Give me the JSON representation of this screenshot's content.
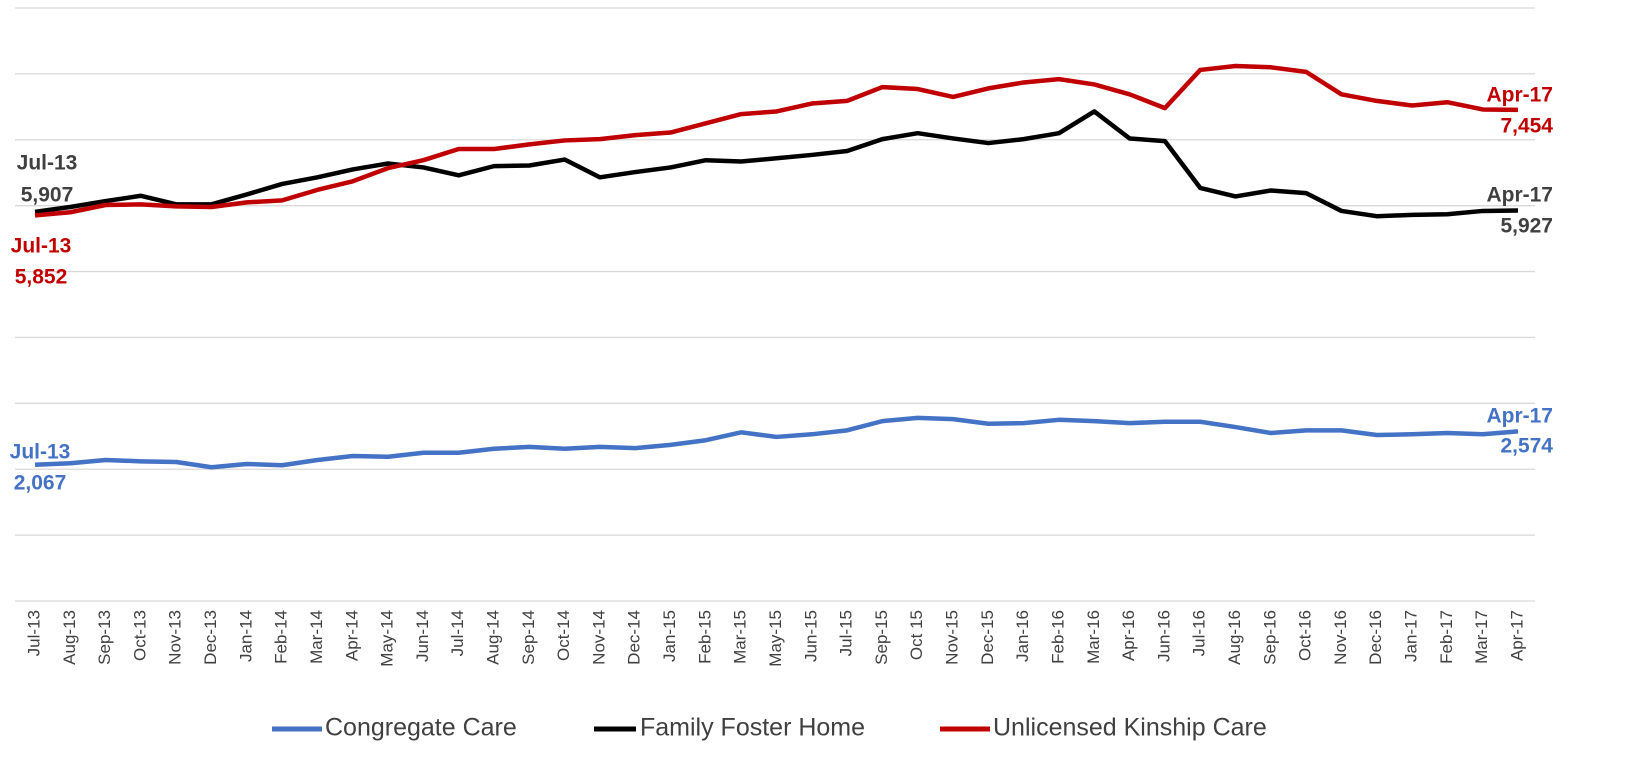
{
  "chart_data": {
    "type": "line",
    "categories": [
      "Jul-13",
      "Aug-13",
      "Sep-13",
      "Oct-13",
      "Nov-13",
      "Dec-13",
      "Jan-14",
      "Feb-14",
      "Mar-14",
      "Apr-14",
      "May-14",
      "Jun-14",
      "Jul-14",
      "Aug-14",
      "Sep-14",
      "Oct-14",
      "Nov-14",
      "Dec-14",
      "Jan-15",
      "Feb-15",
      "Mar-15",
      "May-15",
      "Jun-15",
      "Jul-15",
      "Sep-15",
      "Oct 15",
      "Nov-15",
      "Dec-15",
      "Jan-16",
      "Feb-16",
      "Mar-16",
      "Apr-16",
      "Jun-16",
      "Jul-16",
      "Aug-16",
      "Sep-16",
      "Oct-16",
      "Nov-16",
      "Dec-16",
      "Jan-17",
      "Feb-17",
      "Mar-17",
      "Apr-17"
    ],
    "series": [
      {
        "name": "Congregate Care",
        "color": "#4472c4",
        "label_color": "#4472c4",
        "values": [
          2067,
          2090,
          2140,
          2120,
          2110,
          2030,
          2080,
          2060,
          2140,
          2200,
          2190,
          2250,
          2250,
          2310,
          2340,
          2310,
          2340,
          2320,
          2370,
          2440,
          2560,
          2490,
          2530,
          2590,
          2730,
          2780,
          2760,
          2690,
          2700,
          2750,
          2730,
          2700,
          2720,
          2720,
          2640,
          2550,
          2590,
          2590,
          2520,
          2530,
          2550,
          2530,
          2574
        ],
        "value_labels": [
          "2,067",
          null,
          null,
          null,
          null,
          null,
          null,
          null,
          null,
          null,
          null,
          null,
          null,
          null,
          null,
          null,
          null,
          null,
          null,
          null,
          null,
          null,
          null,
          null,
          null,
          null,
          null,
          null,
          null,
          null,
          null,
          null,
          null,
          null,
          null,
          null,
          null,
          null,
          null,
          null,
          null,
          null,
          "2,574"
        ]
      },
      {
        "name": "Family Foster Home",
        "color": "#000000",
        "label_color": "#404040",
        "values": [
          5907,
          5980,
          6070,
          6150,
          6020,
          6020,
          6170,
          6330,
          6430,
          6550,
          6640,
          6580,
          6460,
          6600,
          6610,
          6700,
          6430,
          6510,
          6580,
          6690,
          6670,
          6720,
          6770,
          6830,
          7010,
          7100,
          7020,
          6950,
          7010,
          7100,
          7430,
          7020,
          6980,
          6270,
          6140,
          6230,
          6190,
          5920,
          5840,
          5860,
          5870,
          5920,
          5927
        ],
        "value_labels": [
          "5,907",
          null,
          null,
          null,
          null,
          null,
          null,
          null,
          null,
          null,
          null,
          null,
          null,
          null,
          null,
          null,
          null,
          null,
          null,
          null,
          null,
          null,
          null,
          null,
          null,
          null,
          null,
          null,
          null,
          null,
          null,
          null,
          null,
          null,
          null,
          null,
          null,
          null,
          null,
          null,
          null,
          null,
          "5,927"
        ]
      },
      {
        "name": "Unlicensed Kinship Care",
        "color": "#c00000",
        "label_color": "#c00000",
        "values": [
          5852,
          5900,
          6010,
          6020,
          5990,
          5980,
          6050,
          6080,
          6240,
          6370,
          6570,
          6690,
          6860,
          6860,
          6930,
          6990,
          7010,
          7070,
          7110,
          7250,
          7390,
          7430,
          7550,
          7590,
          7800,
          7770,
          7650,
          7780,
          7870,
          7920,
          7840,
          7690,
          7480,
          8060,
          8120,
          8100,
          8030,
          7690,
          7590,
          7520,
          7570,
          7460,
          7454
        ],
        "value_labels": [
          "5,852",
          null,
          null,
          null,
          null,
          null,
          null,
          null,
          null,
          null,
          null,
          null,
          null,
          null,
          null,
          null,
          null,
          null,
          null,
          null,
          null,
          null,
          null,
          null,
          null,
          null,
          null,
          null,
          null,
          null,
          null,
          null,
          null,
          null,
          null,
          null,
          null,
          null,
          null,
          null,
          null,
          null,
          "7,454"
        ]
      }
    ],
    "ylim": [
      0,
      9000
    ],
    "yticks": [
      0,
      1000,
      2000,
      3000,
      4000,
      5000,
      6000,
      7000,
      8000,
      9000
    ],
    "grid": true,
    "legend": "bottom"
  }
}
